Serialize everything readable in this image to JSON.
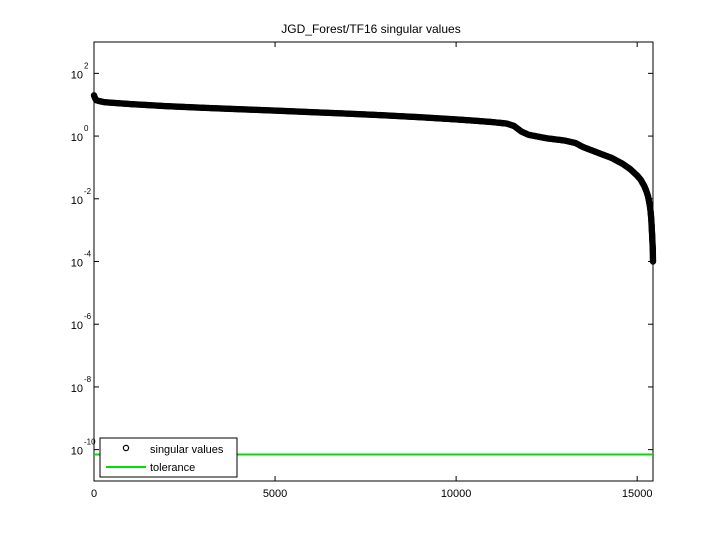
{
  "chart_data": {
    "type": "scatter",
    "title": "JGD_Forest/TF16 singular values",
    "xlabel": "",
    "ylabel": "",
    "xlim": [
      0,
      15437
    ],
    "ylim": [
      1e-11,
      1000
    ],
    "y_scale": "log",
    "grid": false,
    "legend_position": "bottom-left",
    "x_ticks": [
      {
        "value": 0,
        "label": "0"
      },
      {
        "value": 5000,
        "label": "5000"
      },
      {
        "value": 10000,
        "label": "10000"
      },
      {
        "value": 15000,
        "label": "15000"
      }
    ],
    "y_ticks": [
      {
        "value": 100,
        "base": "10",
        "exp": "2"
      },
      {
        "value": 1,
        "base": "10",
        "exp": "0"
      },
      {
        "value": 0.01,
        "base": "10",
        "exp": "-2"
      },
      {
        "value": 0.0001,
        "base": "10",
        "exp": "-4"
      },
      {
        "value": 1e-06,
        "base": "10",
        "exp": "-6"
      },
      {
        "value": 1e-08,
        "base": "10",
        "exp": "-8"
      },
      {
        "value": 1e-10,
        "base": "10",
        "exp": "-10"
      }
    ],
    "series": [
      {
        "name": "singular values",
        "kind": "markers",
        "color": "#000000",
        "x": [
          0,
          20,
          60,
          150,
          300,
          1000,
          2000,
          3000,
          4000,
          5000,
          6000,
          7000,
          8000,
          9000,
          10000,
          10500,
          11000,
          11400,
          11600,
          11800,
          12000,
          12500,
          13000,
          13300,
          13500,
          14000,
          14300,
          14600,
          14800,
          15000,
          15100,
          15200,
          15250,
          15300,
          15330,
          15350,
          15370,
          15380,
          15390,
          15395,
          15400,
          15405,
          15410,
          15415,
          15420,
          15425,
          15430,
          15433,
          15437
        ],
        "y": [
          20,
          17,
          14,
          13,
          12,
          10.5,
          9,
          8,
          7.2,
          6.5,
          5.8,
          5.2,
          4.6,
          4.0,
          3.4,
          3.1,
          2.8,
          2.5,
          2.1,
          1.4,
          1.1,
          0.85,
          0.72,
          0.6,
          0.45,
          0.27,
          0.2,
          0.13,
          0.09,
          0.055,
          0.04,
          0.025,
          0.018,
          0.012,
          0.008,
          0.006,
          0.004,
          0.003,
          0.0022,
          0.0017,
          0.0013,
          0.001,
          0.0008,
          0.0006,
          0.00045,
          0.00035,
          0.00027,
          0.0002,
          0.0001
        ]
      },
      {
        "name": "tolerance",
        "kind": "line",
        "color": "#00dd00",
        "x": [
          0,
          15437
        ],
        "y": [
          7e-11,
          7e-11
        ]
      }
    ]
  }
}
